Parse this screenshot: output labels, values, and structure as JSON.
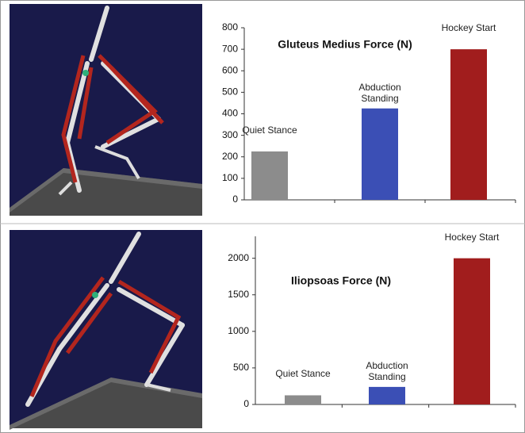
{
  "chart_data": [
    {
      "type": "bar",
      "title": "Gluteus Medius Force (N)",
      "categories": [
        "Quiet Stance",
        "Abduction Standing",
        "Hockey Start"
      ],
      "values": [
        225,
        425,
        700
      ],
      "colors": [
        "#8c8c8c",
        "#3b4fb5",
        "#a11d1d"
      ],
      "ylim": [
        0,
        800
      ],
      "yticks": [
        0,
        100,
        200,
        300,
        400,
        500,
        600,
        700,
        800
      ]
    },
    {
      "type": "bar",
      "title": "Iliopsoas Force (N)",
      "categories": [
        "Quiet Stance",
        "Abduction Standing",
        "Hockey Start"
      ],
      "values": [
        125,
        240,
        2000
      ],
      "colors": [
        "#8c8c8c",
        "#3b4fb5",
        "#a11d1d"
      ],
      "ylim": [
        0,
        2300
      ],
      "yticks": [
        0,
        500,
        1000,
        1500,
        2000
      ]
    }
  ]
}
